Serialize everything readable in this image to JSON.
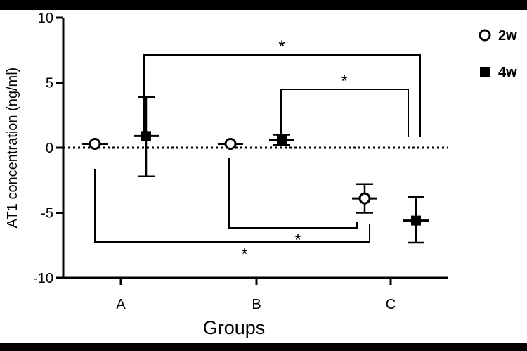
{
  "chart_data": {
    "type": "scatter",
    "title": "",
    "xlabel": "Groups",
    "ylabel": "AT1 concentration (ng/ml)",
    "categories": [
      "A",
      "B",
      "C"
    ],
    "ylim": [
      -10,
      10
    ],
    "yticks": [
      10,
      5,
      0,
      -5,
      -10
    ],
    "reference_line": 0,
    "series": [
      {
        "name": "2w",
        "marker": "open-circle",
        "values": [
          0.3,
          0.3,
          -3.9
        ],
        "err_high": [
          0.3,
          0.3,
          -2.8
        ],
        "err_low": [
          0.3,
          0.3,
          -5.0
        ]
      },
      {
        "name": "4w",
        "marker": "filled-square",
        "values": [
          0.9,
          0.6,
          -5.6
        ],
        "err_high": [
          3.9,
          1.0,
          -3.8
        ],
        "err_low": [
          -2.2,
          0.2,
          -7.3
        ]
      }
    ],
    "significance": [
      {
        "from": "A 4w",
        "to": "C 4w",
        "label": "*"
      },
      {
        "from": "B 4w",
        "to": "C 4w",
        "label": "*"
      },
      {
        "from": "B 2w",
        "to": "C 2w",
        "label": "*"
      },
      {
        "from": "A 2w",
        "to": "C 2w",
        "label": "*"
      }
    ],
    "legend_position": "top-right",
    "grid": false
  }
}
